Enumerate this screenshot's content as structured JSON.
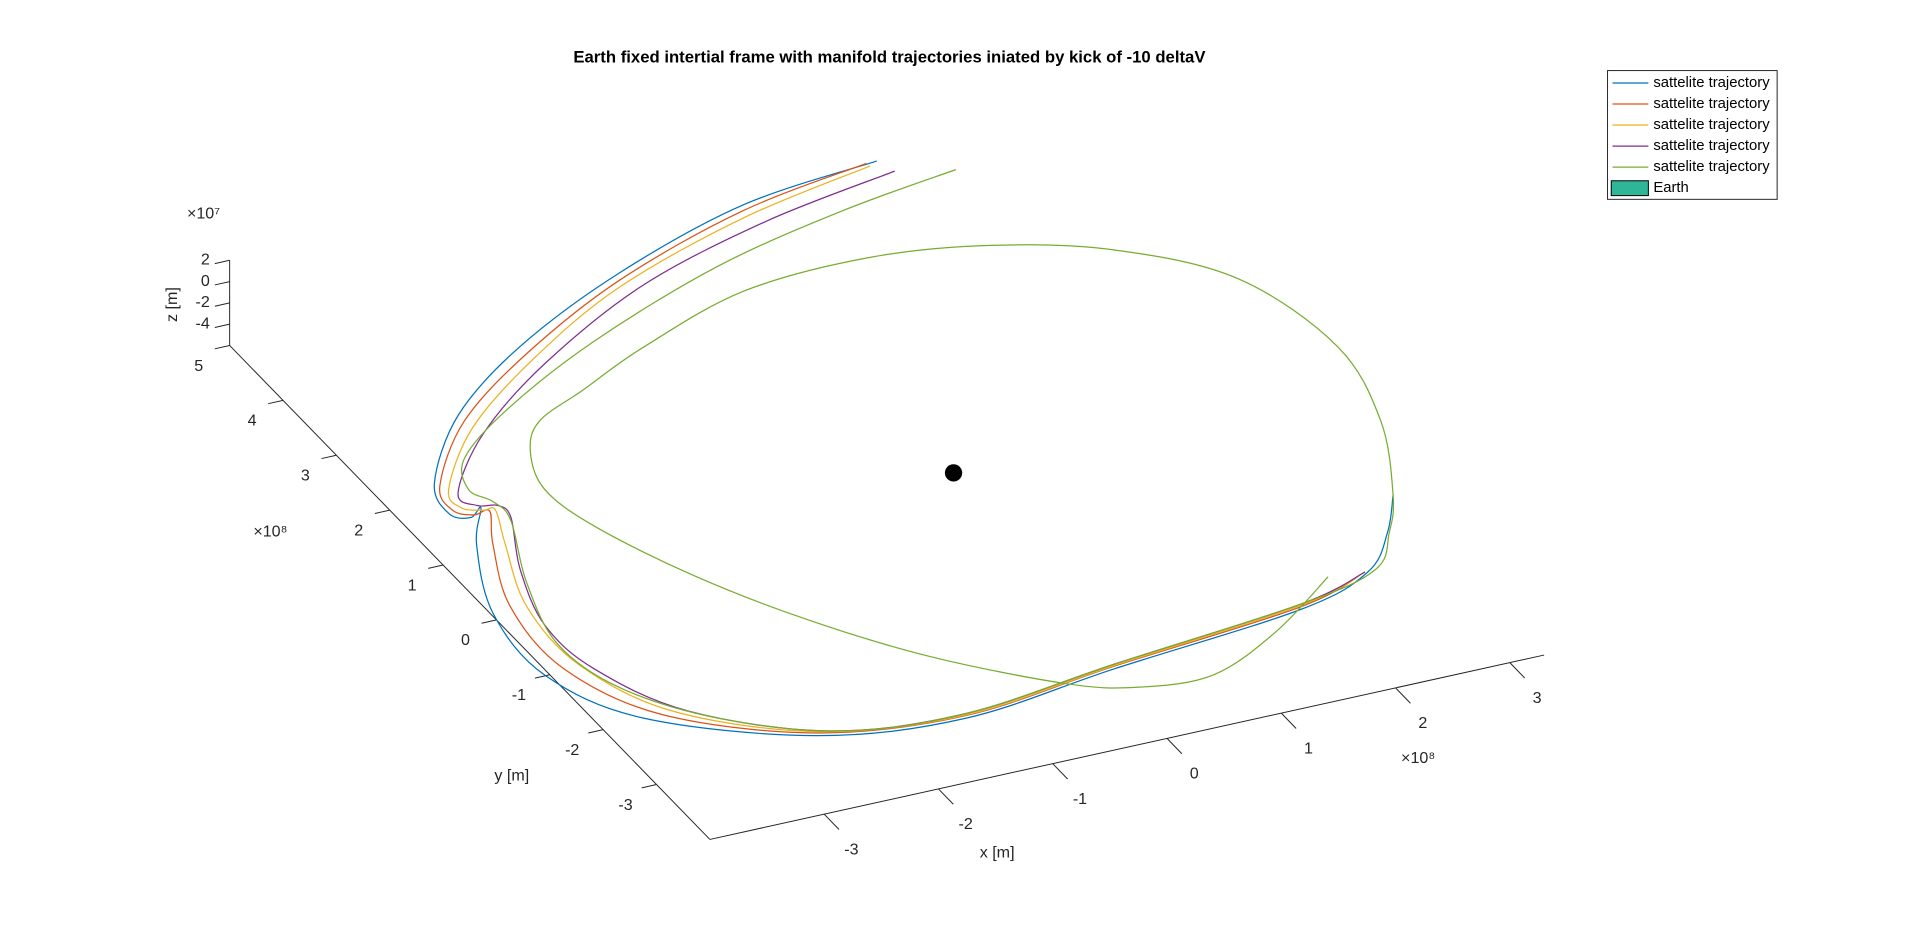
{
  "chart_data": {
    "type": "line3d",
    "title": "Earth fixed intertial frame with manifold trajectories iniated by kick of -10 deltaV",
    "xlabel": "x [m]",
    "ylabel": "y [m]",
    "zlabel": "z [m]",
    "x_multiplier": "×10⁸",
    "y_multiplier": "×10⁸",
    "z_multiplier": "×10⁷",
    "xlim": [
      -4,
      3.3
    ],
    "ylim": [
      -4,
      5
    ],
    "zlim": [
      -6,
      2
    ],
    "xticks": [
      -3,
      -2,
      -1,
      0,
      1,
      2,
      3
    ],
    "yticks": [
      -3,
      -2,
      -1,
      0,
      1,
      2,
      3,
      4,
      5
    ],
    "zticks": [
      -4,
      -2,
      0,
      2
    ],
    "legend": "top-right",
    "series": [
      {
        "name": "sattelite trajectory",
        "color": "#0072BD",
        "x": [
          1.84,
          0.58,
          -0.79,
          -2.03,
          -2.95,
          -3.6,
          -3.71,
          -3.58,
          -3.44,
          -3.73,
          -4.09,
          -4.15,
          -3.74,
          -2.61,
          -1.42,
          0.0,
          1.75,
          2.5,
          2.92,
          3.22
        ],
        "y": [
          5.38,
          5.17,
          4.56,
          3.78,
          2.96,
          2.02,
          1.51,
          1.38,
          1.49,
          0.95,
          -0.13,
          -1.23,
          -2.2,
          -3.04,
          -3.27,
          -3.02,
          -2.75,
          -2.41,
          -1.88,
          -1.34
        ],
        "z": [
          -4.5,
          -4.5,
          -4.5,
          -4.5,
          -4.5,
          -4.5,
          -4.5,
          -4.5,
          -4.5,
          -4.5,
          -4.5,
          -4.5,
          -4.5,
          -4.5,
          -4.5,
          -4.5,
          -4.5,
          -4.5,
          -4.5,
          -4.5
        ]
      },
      {
        "name": "sattelite trajectory",
        "color": "#D95319",
        "x": [
          1.75,
          0.53,
          -0.84,
          -2.02,
          -2.95,
          -3.58,
          -3.66,
          -3.54,
          -3.4,
          -3.61,
          -3.92,
          -3.97,
          -3.58,
          -2.59,
          -1.4,
          0.02,
          1.77,
          2.48
        ],
        "y": [
          5.38,
          5.08,
          4.45,
          3.66,
          2.85,
          1.96,
          1.55,
          1.41,
          1.41,
          0.9,
          -0.09,
          -1.19,
          -2.21,
          -3.0,
          -3.23,
          -2.98,
          -2.71,
          -2.4
        ],
        "z": [
          -4.5,
          -4.5,
          -4.5,
          -4.5,
          -4.5,
          -4.5,
          -4.5,
          -4.5,
          -4.5,
          -4.5,
          -4.5,
          -4.5,
          -4.5,
          -4.5,
          -4.5,
          -4.5,
          -4.5,
          -4.5
        ]
      },
      {
        "name": "sattelite trajectory",
        "color": "#EDB120",
        "x": [
          1.76,
          0.48,
          -0.9,
          -2.02,
          -2.93,
          -3.54,
          -3.58,
          -3.44,
          -3.35,
          -3.52,
          -3.8,
          -3.83,
          -3.47,
          -2.54,
          -1.39,
          0.03,
          1.78,
          2.48
        ],
        "y": [
          5.33,
          4.97,
          4.34,
          3.55,
          2.73,
          1.88,
          1.56,
          1.45,
          1.41,
          0.86,
          -0.14,
          -1.19,
          -2.21,
          -3.0,
          -3.22,
          -2.97,
          -2.69,
          -2.4
        ],
        "z": [
          -4.5,
          -4.5,
          -4.5,
          -4.5,
          -4.5,
          -4.5,
          -4.5,
          -4.5,
          -4.5,
          -4.5,
          -4.5,
          -4.5,
          -4.5,
          -4.5,
          -4.5,
          -4.5,
          -4.5,
          -4.5
        ]
      },
      {
        "name": "sattelite trajectory",
        "color": "#7E2F8E",
        "x": [
          1.9,
          0.64,
          -0.7,
          -1.96,
          -2.9,
          -3.5,
          -3.45,
          -3.3,
          -3.29,
          -3.59,
          -3.8,
          -3.75,
          -3.37,
          -2.49,
          -1.38,
          0.04,
          1.79,
          2.48
        ],
        "y": [
          5.17,
          4.85,
          4.3,
          3.45,
          2.6,
          1.79,
          1.54,
          1.47,
          1.25,
          0.43,
          -0.48,
          -1.3,
          -2.24,
          -3.01,
          -3.2,
          -2.95,
          -2.67,
          -2.4
        ],
        "z": [
          -4.5,
          -4.5,
          -4.5,
          -4.5,
          -4.5,
          -4.5,
          -4.5,
          -4.5,
          -4.5,
          -4.5,
          -4.5,
          -4.5,
          -4.5,
          -4.5,
          -4.5,
          -4.5,
          -4.5,
          -4.5
        ]
      },
      {
        "name": "sattelite trajectory",
        "color": "#77AC30",
        "x": [
          2.35,
          1.25,
          -0.04,
          -1.45,
          -2.55,
          -3.21,
          -3.4,
          -3.31,
          -3.31,
          -3.63,
          -3.84,
          -3.7,
          -3.2,
          -2.4,
          -1.38,
          0.04,
          1.79,
          2.57,
          2.93,
          3.22,
          3.65,
          3.86,
          3.62,
          2.93,
          2.07,
          1.1,
          -0.03,
          -1.13,
          -1.88,
          -2.41,
          -2.69,
          -2.85,
          -2.75,
          -2.38,
          -1.88,
          -1.25,
          -0.46,
          0.05,
          0.67,
          1.42,
          2.18
        ],
        "y": [
          4.99,
          4.75,
          4.33,
          3.62,
          2.89,
          2.29,
          1.81,
          1.55,
          1.21,
          0.23,
          -0.8,
          -1.66,
          -2.45,
          -3.05,
          -3.2,
          -2.95,
          -2.67,
          -2.4,
          -1.89,
          -1.34,
          -0.19,
          1.07,
          2.42,
          3.26,
          3.74,
          3.96,
          3.87,
          3.37,
          2.92,
          2.6,
          2.17,
          1.56,
          0.84,
          -0.23,
          -1.25,
          -2.22,
          -3.08,
          -3.38,
          -3.44,
          -3.0,
          -2.35
        ],
        "z": [
          -4.5,
          -4.5,
          -4.5,
          -4.5,
          -4.5,
          -4.5,
          -4.5,
          -4.5,
          -4.5,
          -4.5,
          -4.5,
          -4.5,
          -4.5,
          -4.5,
          -4.5,
          -4.5,
          -4.5,
          -4.5,
          -4.5,
          -4.5,
          -4.5,
          -4.5,
          -4.5,
          -4.5,
          -4.5,
          -4.5,
          -4.5,
          -4.5,
          -4.5,
          -4.5,
          -4.5,
          -4.5,
          -4.5,
          -4.5,
          -4.5,
          -4.5,
          -4.5,
          -4.5,
          -4.5,
          -4.5,
          -4.5
        ]
      }
    ],
    "earth": {
      "name": "Earth",
      "color": "#000000",
      "legend_color": "#2FB597",
      "x": 0.21,
      "y": 0.45,
      "z": -4.5
    }
  }
}
